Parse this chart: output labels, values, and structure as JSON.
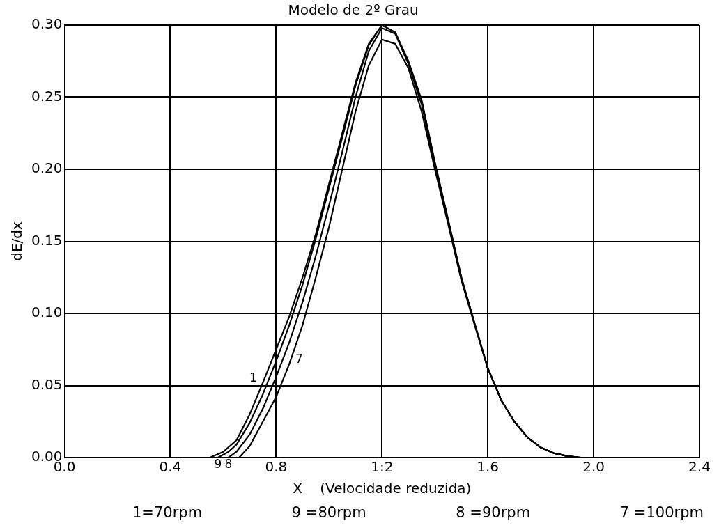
{
  "chart_data": {
    "type": "line",
    "title": "Modelo de 2º Grau",
    "xlabel": "X    (Velocidade reduzida)",
    "ylabel": "dE/dx",
    "xlim": [
      0,
      2.4
    ],
    "ylim": [
      0,
      0.3
    ],
    "xticks": [
      {
        "value": 0,
        "label": "0.0"
      },
      0.4,
      0.8,
      {
        "value": 1.2,
        "label": "1:2"
      },
      1.6,
      {
        "value": 2,
        "label": "2.0"
      },
      2.4
    ],
    "yticks": [
      {
        "value": 0,
        "label": "0.00"
      },
      0.05,
      {
        "value": 0.1,
        "label": "0.10"
      },
      0.15,
      {
        "value": 0.2,
        "label": "0.20"
      },
      0.25,
      {
        "value": 0.3,
        "label": "0.30"
      }
    ],
    "grid": true,
    "marker": "none",
    "line_style": "solid",
    "series": [
      {
        "color": "#000000",
        "x": [
          0.55,
          0.6,
          0.65,
          0.7,
          0.75,
          0.8,
          0.85,
          0.9,
          0.95,
          1.0,
          1.05,
          1.1,
          1.15,
          1.2,
          1.25,
          1.3,
          1.35,
          1.4,
          1.45,
          1.5,
          1.55,
          1.6,
          1.65,
          1.7,
          1.75,
          1.8,
          1.85,
          1.9,
          1.95
        ],
        "values": [
          0,
          0.004,
          0.012,
          0.03,
          0.052,
          0.075,
          0.098,
          0.125,
          0.155,
          0.19,
          0.225,
          0.26,
          0.287,
          0.3,
          0.295,
          0.275,
          0.248,
          0.205,
          0.165,
          0.125,
          0.093,
          0.062,
          0.04,
          0.025,
          0.014,
          0.007,
          0.003,
          0.001,
          0
        ]
      },
      {
        "color": "#000000",
        "x": [
          0.58,
          0.62,
          0.65,
          0.7,
          0.75,
          0.8,
          0.85,
          0.9,
          0.95,
          1.0,
          1.05,
          1.1,
          1.15,
          1.2,
          1.25,
          1.3,
          1.35,
          1.4,
          1.45,
          1.5,
          1.55,
          1.6,
          1.65,
          1.7,
          1.75,
          1.8,
          1.85,
          1.9,
          1.95
        ],
        "values": [
          0,
          0.004,
          0.009,
          0.024,
          0.044,
          0.067,
          0.092,
          0.12,
          0.152,
          0.187,
          0.222,
          0.258,
          0.286,
          0.3,
          0.295,
          0.274,
          0.247,
          0.204,
          0.165,
          0.125,
          0.093,
          0.062,
          0.04,
          0.025,
          0.014,
          0.007,
          0.003,
          0.001,
          0
        ]
      },
      {
        "color": "#000000",
        "x": [
          0.62,
          0.65,
          0.7,
          0.75,
          0.8,
          0.85,
          0.9,
          0.95,
          1.0,
          1.05,
          1.1,
          1.15,
          1.2,
          1.25,
          1.3,
          1.35,
          1.4,
          1.45,
          1.5,
          1.55,
          1.6,
          1.65,
          1.7,
          1.75,
          1.8,
          1.85,
          1.9,
          1.95
        ],
        "values": [
          0,
          0.004,
          0.016,
          0.034,
          0.056,
          0.08,
          0.108,
          0.14,
          0.175,
          0.212,
          0.25,
          0.282,
          0.298,
          0.294,
          0.273,
          0.245,
          0.203,
          0.164,
          0.124,
          0.093,
          0.062,
          0.04,
          0.025,
          0.014,
          0.007,
          0.003,
          0.001,
          0
        ]
      },
      {
        "color": "#000000",
        "x": [
          0.66,
          0.7,
          0.75,
          0.8,
          0.85,
          0.9,
          0.95,
          1.0,
          1.05,
          1.1,
          1.15,
          1.2,
          1.25,
          1.3,
          1.35,
          1.4,
          1.45,
          1.5,
          1.55,
          1.6,
          1.65,
          1.7,
          1.75,
          1.8,
          1.85,
          1.9,
          1.95
        ],
        "values": [
          0,
          0.008,
          0.025,
          0.042,
          0.065,
          0.092,
          0.125,
          0.16,
          0.2,
          0.24,
          0.272,
          0.29,
          0.287,
          0.27,
          0.24,
          0.2,
          0.162,
          0.123,
          0.092,
          0.062,
          0.04,
          0.025,
          0.014,
          0.007,
          0.003,
          0.001,
          0
        ]
      }
    ],
    "annotations": [
      {
        "text": "1",
        "x": 0.75,
        "y": 0.052
      },
      {
        "text": "7",
        "x": 0.85,
        "y": 0.065
      },
      {
        "text": "9",
        "x": 0.58,
        "y": 0
      },
      {
        "text": "8",
        "x": 0.62,
        "y": 0
      },
      "1=70rpm",
      "9 =80rpm",
      "8 =90rpm",
      "7 =100rpm"
    ]
  }
}
